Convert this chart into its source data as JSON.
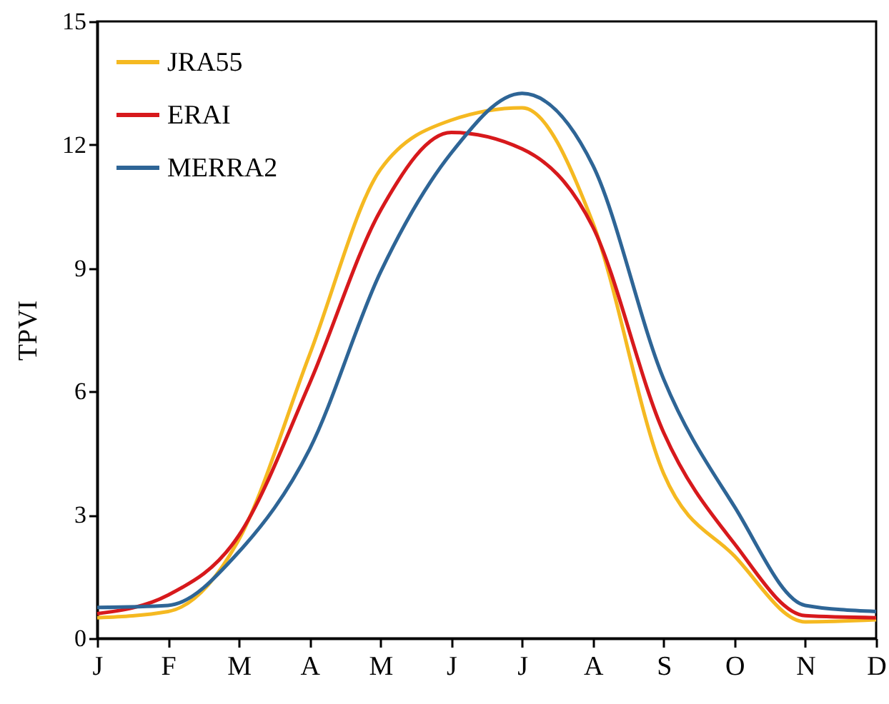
{
  "chart_data": {
    "type": "line",
    "ylabel": "TPVI",
    "categories": [
      "J",
      "F",
      "M",
      "A",
      "M",
      "J",
      "J",
      "A",
      "S",
      "O",
      "N",
      "D"
    ],
    "ylim": [
      0,
      15
    ],
    "yticks": [
      0,
      3,
      6,
      9,
      12,
      15
    ],
    "series": [
      {
        "name": "JRA55",
        "color": "#f5b921",
        "values": [
          0.5,
          0.65,
          2.4,
          6.9,
          11.4,
          12.6,
          12.9,
          10.1,
          4.0,
          2.0,
          0.4,
          0.45
        ]
      },
      {
        "name": "ERAI",
        "color": "#d7191c",
        "values": [
          0.6,
          1.05,
          2.5,
          6.2,
          10.4,
          12.3,
          11.9,
          10.0,
          5.0,
          2.3,
          0.55,
          0.5
        ]
      },
      {
        "name": "MERRA2",
        "color": "#2e6596",
        "values": [
          0.75,
          0.8,
          2.1,
          4.6,
          8.9,
          11.8,
          13.25,
          11.5,
          6.3,
          3.2,
          0.8,
          0.65
        ]
      }
    ],
    "legend": "top left",
    "grid": false,
    "marker": "none",
    "line_style": "solid"
  }
}
